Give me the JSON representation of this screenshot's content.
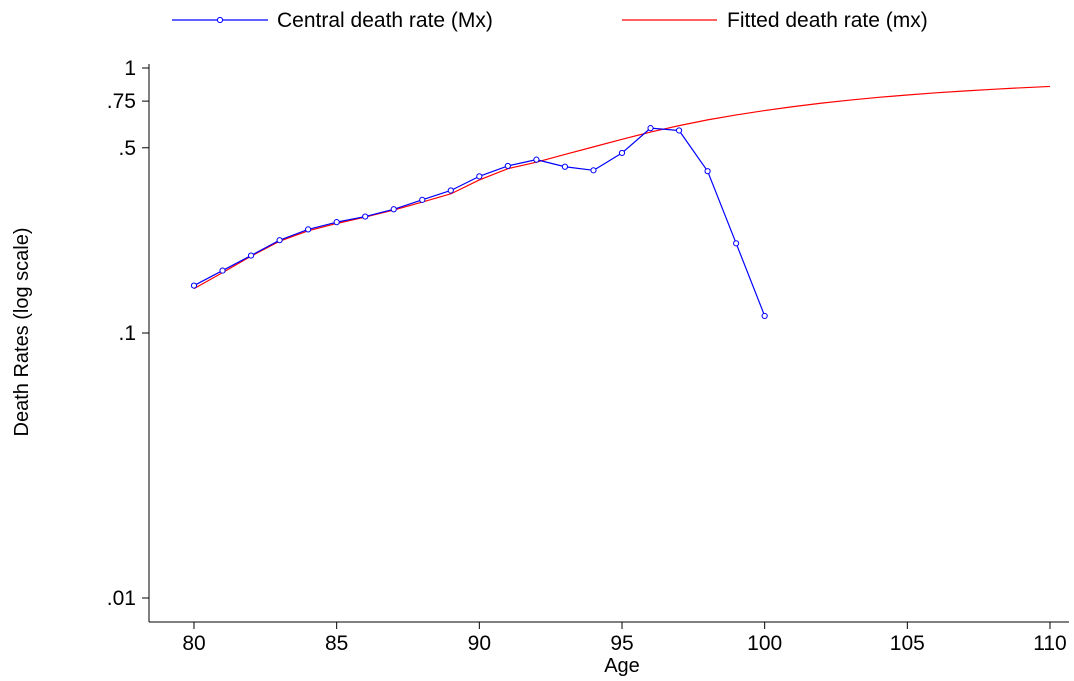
{
  "chart_data": {
    "type": "line",
    "xlabel": "Age",
    "ylabel": "Death Rates (log scale)",
    "y_scale": "log",
    "xlim": [
      80,
      110
    ],
    "ylim": [
      0.01,
      1
    ],
    "x_ticks": [
      80,
      85,
      90,
      95,
      100,
      105,
      110
    ],
    "x_tick_labels": [
      "80",
      "85",
      "90",
      "95",
      "100",
      "105",
      "110"
    ],
    "y_ticks": [
      0.01,
      0.1,
      0.5,
      0.75,
      1
    ],
    "y_tick_labels": [
      ".01",
      ".1",
      ".5",
      ".75",
      "1"
    ],
    "grid": false,
    "legend_position": "top",
    "series": [
      {
        "name": "Central death rate (Mx)",
        "color": "#0000ff",
        "marker": "hollow-circle",
        "x": [
          80,
          81,
          82,
          83,
          84,
          85,
          86,
          87,
          88,
          89,
          90,
          91,
          92,
          93,
          94,
          95,
          96,
          97,
          98,
          99,
          100
        ],
        "y": [
          0.151,
          0.172,
          0.196,
          0.224,
          0.246,
          0.262,
          0.275,
          0.293,
          0.318,
          0.345,
          0.39,
          0.427,
          0.451,
          0.424,
          0.411,
          0.478,
          0.593,
          0.581,
          0.408,
          0.218,
          0.116
        ]
      },
      {
        "name": "Fitted death rate (mx)",
        "color": "#ff0000",
        "marker": "none",
        "x": [
          80,
          81,
          82,
          83,
          84,
          85,
          86,
          87,
          88,
          89,
          90,
          91,
          92,
          93,
          94,
          95,
          96,
          97,
          98,
          99,
          100,
          101,
          102,
          103,
          104,
          105,
          106,
          107,
          108,
          109,
          110
        ],
        "y": [
          0.147,
          0.169,
          0.195,
          0.222,
          0.243,
          0.259,
          0.274,
          0.291,
          0.312,
          0.335,
          0.378,
          0.417,
          0.441,
          0.472,
          0.504,
          0.538,
          0.573,
          0.606,
          0.637,
          0.665,
          0.691,
          0.715,
          0.737,
          0.757,
          0.775,
          0.791,
          0.806,
          0.819,
          0.831,
          0.842,
          0.852
        ]
      }
    ]
  }
}
